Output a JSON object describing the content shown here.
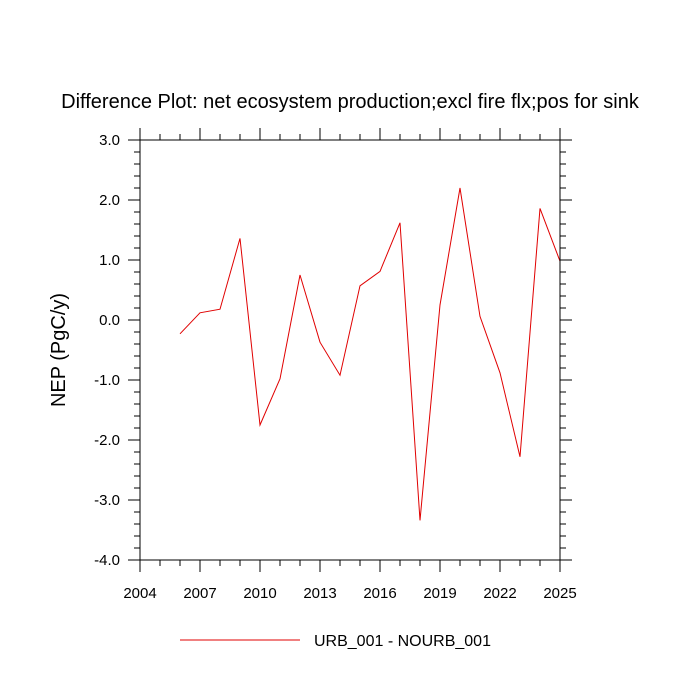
{
  "chart_data": {
    "type": "line",
    "title": "Difference Plot: net ecosystem production;excl fire flx;pos for sink",
    "xlabel": "",
    "ylabel": "NEP  (PgC/y)",
    "xlim": [
      2004,
      2025
    ],
    "ylim": [
      -4.0,
      3.0
    ],
    "x_ticks": [
      2004,
      2007,
      2010,
      2013,
      2016,
      2019,
      2022,
      2025
    ],
    "x_tick_labels": [
      "2004",
      "2007",
      "2010",
      "2013",
      "2016",
      "2019",
      "2022",
      "2025"
    ],
    "y_ticks": [
      -4.0,
      -3.0,
      -2.0,
      -1.0,
      0.0,
      1.0,
      2.0,
      3.0
    ],
    "y_tick_labels": [
      "-4.0",
      "-3.0",
      "-2.0",
      "-1.0",
      "0.0",
      "1.0",
      "2.0",
      "3.0"
    ],
    "legend_position": "bottom-center",
    "series": [
      {
        "name": "URB_001 - NOURB_001",
        "color": "#e00000",
        "x": [
          2006,
          2007,
          2008,
          2009,
          2010,
          2011,
          2012,
          2013,
          2014,
          2015,
          2016,
          2017,
          2018,
          2019,
          2020,
          2021,
          2022,
          2023,
          2024,
          2025
        ],
        "y": [
          -0.23,
          0.12,
          0.18,
          1.36,
          -1.75,
          -0.98,
          0.75,
          -0.37,
          -0.92,
          0.57,
          0.81,
          1.62,
          -3.34,
          0.25,
          2.2,
          0.06,
          -0.88,
          -2.28,
          1.86,
          0.98
        ]
      }
    ]
  }
}
